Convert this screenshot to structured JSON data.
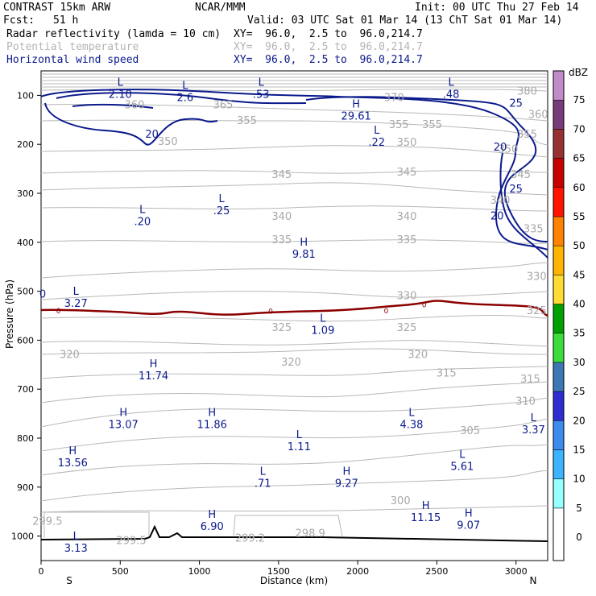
{
  "header": {
    "model": "CONTRAST 15km ARW",
    "institution": "NCAR/MMM",
    "init": "Init: 00 UTC Thu 27 Feb 14",
    "fcst_label": "Fcst:",
    "fcst_value": "51 h",
    "valid": "Valid: 03 UTC Sat 01 Mar 14 (13 ChT Sat 01 Mar 14)"
  },
  "fields": [
    {
      "name": "Radar reflectivity (lamda = 10 cm)",
      "xy": "XY=  96.0,  2.5 to  96.0,214.7",
      "color": "#000000"
    },
    {
      "name": "Potential temperature",
      "xy": "XY=  96.0,  2.5 to  96.0,214.7",
      "color": "#b4b4b4"
    },
    {
      "name": "Horizontal wind speed",
      "xy": "XY=  96.0,  2.5 to  96.0,214.7",
      "color": "#0b1a8c"
    }
  ],
  "chart_data": {
    "type": "cross-section contour",
    "xlabel": "Distance (km)",
    "ylabel": "Pressure (hPa)",
    "xlim": [
      0,
      3200
    ],
    "ylim": [
      1050,
      50
    ],
    "x_ticks": [
      0,
      500,
      1000,
      1500,
      2000,
      2500,
      3000
    ],
    "y_ticks": [
      100,
      200,
      300,
      400,
      500,
      600,
      700,
      800,
      900,
      1000
    ],
    "end_labels": {
      "left": "S",
      "right": "N"
    },
    "colorbar": {
      "unit": "dBZ",
      "levels": [
        0,
        5,
        10,
        15,
        20,
        25,
        30,
        35,
        40,
        45,
        50,
        55,
        60,
        65,
        70,
        75
      ],
      "colors": [
        "#ffffff",
        "#96ffff",
        "#3cb4ff",
        "#3c8cf0",
        "#2d2dd2",
        "#3c78b4",
        "#3cdc3c",
        "#00a000",
        "#ffdc32",
        "#ffb400",
        "#ff8200",
        "#ff1400",
        "#c80000",
        "#963232",
        "#783c78",
        "#c08cc8"
      ]
    },
    "theta_labels": [
      {
        "v": "380",
        "x": 3070,
        "p": 92
      },
      {
        "v": "370",
        "x": 2230,
        "p": 105
      },
      {
        "v": "365",
        "x": 1150,
        "p": 120
      },
      {
        "v": "360",
        "x": 590,
        "p": 120
      },
      {
        "v": "360",
        "x": 3140,
        "p": 140
      },
      {
        "v": "355",
        "x": 1300,
        "p": 152
      },
      {
        "v": "355",
        "x": 2260,
        "p": 160
      },
      {
        "v": "355",
        "x": 2470,
        "p": 160
      },
      {
        "v": "355",
        "x": 3070,
        "p": 180
      },
      {
        "v": "350",
        "x": 800,
        "p": 195
      },
      {
        "v": "350",
        "x": 2310,
        "p": 196
      },
      {
        "v": "350",
        "x": 2950,
        "p": 210
      },
      {
        "v": "345",
        "x": 1520,
        "p": 262
      },
      {
        "v": "345",
        "x": 2310,
        "p": 257
      },
      {
        "v": "345",
        "x": 3030,
        "p": 262
      },
      {
        "v": "340",
        "x": 1520,
        "p": 348
      },
      {
        "v": "340",
        "x": 2310,
        "p": 348
      },
      {
        "v": "340",
        "x": 2900,
        "p": 315
      },
      {
        "v": "335",
        "x": 1520,
        "p": 395
      },
      {
        "v": "335",
        "x": 2310,
        "p": 395
      },
      {
        "v": "335",
        "x": 3110,
        "p": 373
      },
      {
        "v": "330",
        "x": 2310,
        "p": 510
      },
      {
        "v": "330",
        "x": 3130,
        "p": 470
      },
      {
        "v": "325",
        "x": 1520,
        "p": 575
      },
      {
        "v": "325",
        "x": 2310,
        "p": 575
      },
      {
        "v": "325",
        "x": 3130,
        "p": 540
      },
      {
        "v": "320",
        "x": 180,
        "p": 630
      },
      {
        "v": "320",
        "x": 1580,
        "p": 645
      },
      {
        "v": "320",
        "x": 2380,
        "p": 630
      },
      {
        "v": "315",
        "x": 2560,
        "p": 668
      },
      {
        "v": "315",
        "x": 3090,
        "p": 680
      },
      {
        "v": "310",
        "x": 3060,
        "p": 725
      },
      {
        "v": "305",
        "x": 2710,
        "p": 785
      },
      {
        "v": "300",
        "x": 2270,
        "p": 928
      },
      {
        "v": "299.5",
        "x": 40,
        "p": 970
      },
      {
        "v": "299.5",
        "x": 570,
        "p": 1010
      },
      {
        "v": "299.2",
        "x": 1320,
        "p": 1005
      },
      {
        "v": "298.9",
        "x": 1700,
        "p": 995
      }
    ],
    "extrema": [
      {
        "t": "L",
        "v": "2.10",
        "x": 500,
        "p": 85
      },
      {
        "t": "L",
        "v": "2.6",
        "x": 910,
        "p": 92
      },
      {
        "t": "L",
        "v": ".53",
        "x": 1390,
        "p": 85
      },
      {
        "t": "L",
        "v": ".48",
        "x": 2590,
        "p": 85
      },
      {
        "t": "H",
        "v": "29.61",
        "x": 1990,
        "p": 130
      },
      {
        "t": "L",
        "v": ".22",
        "x": 2120,
        "p": 183
      },
      {
        "t": "L",
        "v": ".20",
        "x": 640,
        "p": 345
      },
      {
        "t": "L",
        "v": ".25",
        "x": 1140,
        "p": 323
      },
      {
        "t": "H",
        "v": "9.81",
        "x": 1660,
        "p": 412
      },
      {
        "t": "L",
        "v": "3.27",
        "x": 220,
        "p": 512
      },
      {
        "t": "L",
        "v": "1.09",
        "x": 1780,
        "p": 567
      },
      {
        "t": "H",
        "v": "11.74",
        "x": 710,
        "p": 660
      },
      {
        "t": "H",
        "v": "13.07",
        "x": 520,
        "p": 760
      },
      {
        "t": "H",
        "v": "11.86",
        "x": 1080,
        "p": 760
      },
      {
        "t": "L",
        "v": "4.38",
        "x": 2340,
        "p": 760
      },
      {
        "t": "L",
        "v": "3.37",
        "x": 3110,
        "p": 770
      },
      {
        "t": "L",
        "v": "1.11",
        "x": 1630,
        "p": 805
      },
      {
        "t": "H",
        "v": "13.56",
        "x": 200,
        "p": 838
      },
      {
        "t": "L",
        "v": "5.61",
        "x": 2660,
        "p": 845
      },
      {
        "t": "L",
        "v": ".71",
        "x": 1400,
        "p": 880
      },
      {
        "t": "H",
        "v": "9.27",
        "x": 1930,
        "p": 880
      },
      {
        "t": "H",
        "v": "11.15",
        "x": 2430,
        "p": 950
      },
      {
        "t": "H",
        "v": "9.07",
        "x": 2700,
        "p": 965
      },
      {
        "t": "H",
        "v": "6.90",
        "x": 1080,
        "p": 968
      },
      {
        "t": "L",
        "v": "3.13",
        "x": 220,
        "p": 1012
      }
    ],
    "wind_labels": [
      {
        "v": "20",
        "x": 700,
        "p": 178
      },
      {
        "v": "25",
        "x": 3000,
        "p": 115
      },
      {
        "v": "20",
        "x": 2900,
        "p": 205
      },
      {
        "v": "25",
        "x": 3000,
        "p": 290
      },
      {
        "v": "20",
        "x": 2880,
        "p": 345
      },
      {
        "v": "0",
        "x": 10,
        "p": 505
      }
    ],
    "zero_dbz_labels": [
      {
        "v": "0",
        "x": 110,
        "p": 540
      },
      {
        "v": "0",
        "x": 1450,
        "p": 541
      },
      {
        "v": "0",
        "x": 2180,
        "p": 540
      },
      {
        "v": "0",
        "x": 2420,
        "p": 528
      }
    ]
  }
}
